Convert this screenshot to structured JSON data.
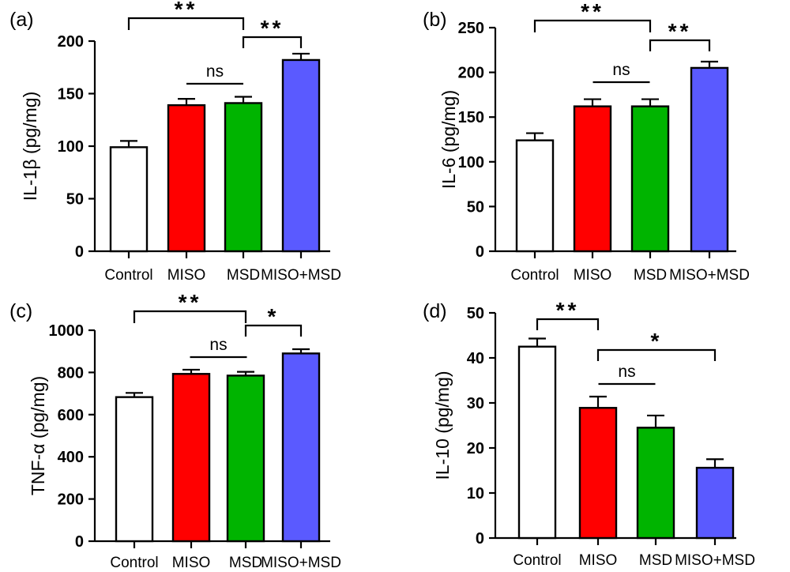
{
  "chart_data": [
    {
      "type": "bar",
      "panel_label": "(a)",
      "ylabel": "IL-1β (pg/mg)",
      "categories": [
        "Control",
        "MISO",
        "MSD",
        "MISO+MSD"
      ],
      "values": [
        99,
        139,
        141,
        182
      ],
      "errors": [
        6,
        6,
        6,
        6
      ],
      "ylim": [
        0,
        200
      ],
      "yticks": [
        0,
        50,
        100,
        150,
        200
      ],
      "bar_colors": [
        "#ffffff",
        "#ff0000",
        "#00b400",
        "#5a5aff"
      ],
      "significance": [
        {
          "from": 0,
          "to": 2,
          "label": "**"
        },
        {
          "from": 2,
          "to": 3,
          "label": "**"
        },
        {
          "from": 1,
          "to": 2,
          "label": "ns"
        }
      ]
    },
    {
      "type": "bar",
      "panel_label": "(b)",
      "ylabel": "IL-6 (pg/mg)",
      "categories": [
        "Control",
        "MISO",
        "MSD",
        "MISO+MSD"
      ],
      "values": [
        124,
        162,
        162,
        205
      ],
      "errors": [
        8,
        8,
        8,
        7
      ],
      "ylim": [
        0,
        250
      ],
      "yticks": [
        0,
        50,
        100,
        150,
        200,
        250
      ],
      "bar_colors": [
        "#ffffff",
        "#ff0000",
        "#00b400",
        "#5a5aff"
      ],
      "significance": [
        {
          "from": 0,
          "to": 2,
          "label": "**"
        },
        {
          "from": 2,
          "to": 3,
          "label": "**"
        },
        {
          "from": 1,
          "to": 2,
          "label": "ns"
        }
      ]
    },
    {
      "type": "bar",
      "panel_label": "(c)",
      "ylabel": "TNF-α (pg/mg)",
      "categories": [
        "Control",
        "MISO",
        "MSD",
        "MISO+MSD"
      ],
      "values": [
        683,
        793,
        785,
        890
      ],
      "errors": [
        20,
        20,
        18,
        20
      ],
      "ylim": [
        0,
        1000
      ],
      "yticks": [
        0,
        200,
        400,
        600,
        800,
        1000
      ],
      "bar_colors": [
        "#ffffff",
        "#ff0000",
        "#00b400",
        "#5a5aff"
      ],
      "significance": [
        {
          "from": 0,
          "to": 2,
          "label": "**"
        },
        {
          "from": 2,
          "to": 3,
          "label": "*"
        },
        {
          "from": 1,
          "to": 2,
          "label": "ns"
        }
      ]
    },
    {
      "type": "bar",
      "panel_label": "(d)",
      "ylabel": "IL-10 (pg/mg)",
      "categories": [
        "Control",
        "MISO",
        "MSD",
        "MISO+MSD"
      ],
      "values": [
        42.5,
        28.9,
        24.5,
        15.6
      ],
      "errors": [
        1.8,
        2.5,
        2.7,
        1.9
      ],
      "ylim": [
        0,
        50
      ],
      "yticks": [
        0,
        10,
        20,
        30,
        40,
        50
      ],
      "bar_colors": [
        "#ffffff",
        "#ff0000",
        "#00b400",
        "#5a5aff"
      ],
      "significance": [
        {
          "from": 0,
          "to": 1,
          "label": "**"
        },
        {
          "from": 1,
          "to": 3,
          "label": "*"
        },
        {
          "from": 1,
          "to": 2,
          "label": "ns"
        }
      ]
    }
  ]
}
